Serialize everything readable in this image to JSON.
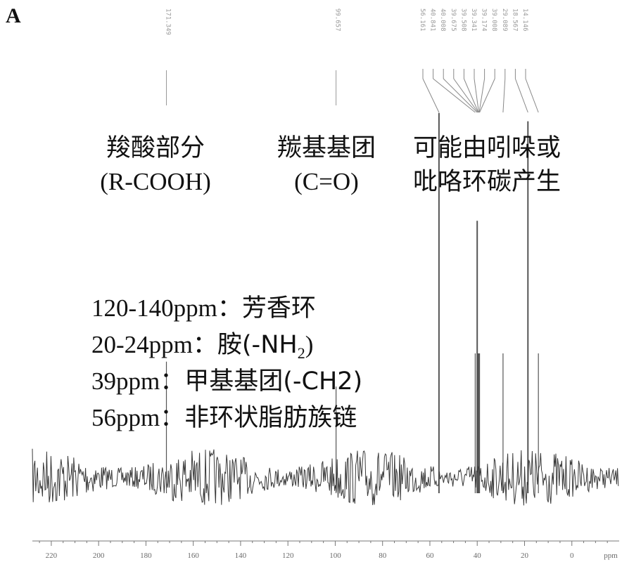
{
  "panel_label": "A",
  "chart_data": {
    "type": "line",
    "title": "",
    "xlabel": "",
    "ylabel": "",
    "x_unit_label": "ppm",
    "xlim": [
      228,
      -20
    ],
    "x_reversed": true,
    "grid": false,
    "x_ticks": [
      220,
      200,
      180,
      160,
      140,
      120,
      100,
      80,
      60,
      40,
      20,
      0
    ],
    "peaks": [
      {
        "label": "171.349",
        "ppm": 171.349,
        "height": 0.28,
        "name": "peak-171-349"
      },
      {
        "label": "99.657",
        "ppm": 99.657,
        "height": 0.22,
        "name": "peak-99-657"
      },
      {
        "label": "56.161",
        "ppm": 56.161,
        "height": 0.88,
        "name": "peak-56-161"
      },
      {
        "label": "40.008",
        "ppm": 40.008,
        "height": 0.62,
        "name": "peak-40-008"
      },
      {
        "label": "40.841",
        "ppm": 40.841,
        "height": 0.3,
        "name": "peak-40-841"
      },
      {
        "label": "39.675",
        "ppm": 39.675,
        "height": 0.3,
        "name": "peak-39-675"
      },
      {
        "label": "39.508",
        "ppm": 39.508,
        "height": 0.3,
        "name": "peak-39-508"
      },
      {
        "label": "39.341",
        "ppm": 39.341,
        "height": 0.3,
        "name": "peak-39-341"
      },
      {
        "label": "39.174",
        "ppm": 39.174,
        "height": 0.3,
        "name": "peak-39-174"
      },
      {
        "label": "39.008",
        "ppm": 39.008,
        "height": 0.3,
        "name": "peak-39-008"
      },
      {
        "label": "29.089",
        "ppm": 29.089,
        "height": 0.3,
        "name": "peak-29-089"
      },
      {
        "label": "18.567",
        "ppm": 18.567,
        "height": 0.86,
        "name": "peak-18-567"
      },
      {
        "label": "14.146",
        "ppm": 14.146,
        "height": 0.3,
        "name": "peak-14-146"
      }
    ]
  },
  "annotations": {
    "carboxyl_cn": "羧酸部分",
    "carboxyl_en": "(R-COOH)",
    "carbonyl_cn": "羰基基团",
    "carbonyl_en": "(C=O)",
    "indole_line1": "可能由吲哚或",
    "indole_line2": "吡咯环碳产生"
  },
  "notes": [
    {
      "range": "120-140ppm",
      "sep": "：",
      "desc": "芳香环",
      "name": "note-aromatic"
    },
    {
      "range": "20-24ppm",
      "sep": "：",
      "desc_pre": "胺(-NH",
      "sub": "2",
      "desc_post": ")",
      "name": "note-amine"
    },
    {
      "range": "39ppm",
      "sep": "：",
      "desc": "甲基基团(-CH2)",
      "name": "note-methyl"
    },
    {
      "range": "56ppm",
      "sep": "：",
      "desc": "非环状脂肪族链",
      "name": "note-aliphatic"
    }
  ]
}
